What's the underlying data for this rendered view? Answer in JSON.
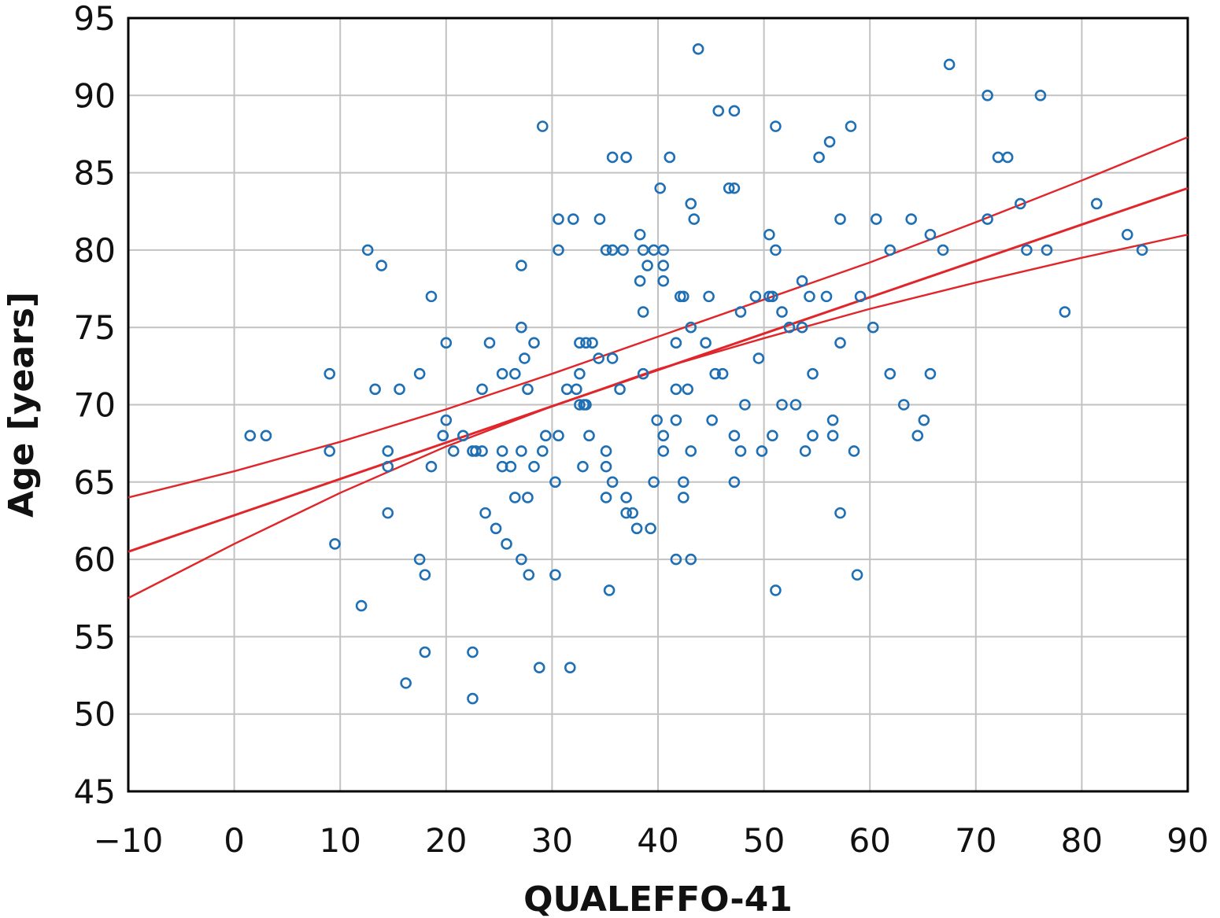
{
  "chart_data": {
    "type": "scatter",
    "title": "",
    "xlabel": "QUALEFFO-41",
    "ylabel": "Age [years]",
    "xlim": [
      -10,
      90
    ],
    "ylim": [
      45,
      95
    ],
    "x_ticks": [
      -10,
      0,
      10,
      20,
      30,
      40,
      50,
      60,
      70,
      80,
      90
    ],
    "y_ticks": [
      45,
      50,
      55,
      60,
      65,
      70,
      75,
      80,
      85,
      90,
      95
    ],
    "x_tick_labels": [
      "−10",
      "0",
      "10",
      "20",
      "30",
      "40",
      "50",
      "60",
      "70",
      "80",
      "90"
    ],
    "y_tick_labels": [
      "45",
      "50",
      "55",
      "60",
      "65",
      "70",
      "75",
      "80",
      "85",
      "90",
      "95"
    ],
    "grid": true,
    "point_color": "#1f6fb5",
    "line_color": "#e0262a",
    "points": [
      [
        1.5,
        68
      ],
      [
        3,
        68
      ],
      [
        9,
        72
      ],
      [
        9,
        67
      ],
      [
        9.5,
        61
      ],
      [
        12,
        57
      ],
      [
        12.6,
        80
      ],
      [
        13.3,
        71
      ],
      [
        13.9,
        79
      ],
      [
        14.5,
        67
      ],
      [
        14.5,
        66
      ],
      [
        14.5,
        63
      ],
      [
        15.6,
        71
      ],
      [
        16.2,
        52
      ],
      [
        17.5,
        72
      ],
      [
        17.5,
        60
      ],
      [
        18,
        59
      ],
      [
        18,
        54
      ],
      [
        18.6,
        77
      ],
      [
        18.6,
        66
      ],
      [
        20,
        74
      ],
      [
        20,
        69
      ],
      [
        19.7,
        68
      ],
      [
        20.7,
        67
      ],
      [
        21.6,
        68
      ],
      [
        22.5,
        67
      ],
      [
        22.5,
        54
      ],
      [
        22.5,
        51
      ],
      [
        22.8,
        67
      ],
      [
        23.4,
        71
      ],
      [
        23.4,
        67
      ],
      [
        23.7,
        63
      ],
      [
        24.1,
        74
      ],
      [
        24.7,
        62
      ],
      [
        25.3,
        72
      ],
      [
        25.3,
        67
      ],
      [
        25.3,
        66
      ],
      [
        25.7,
        61
      ],
      [
        26.1,
        66
      ],
      [
        26.5,
        72
      ],
      [
        26.5,
        64
      ],
      [
        27.1,
        79
      ],
      [
        27.1,
        75
      ],
      [
        27.1,
        67
      ],
      [
        27.1,
        60
      ],
      [
        27.4,
        73
      ],
      [
        27.7,
        71
      ],
      [
        27.7,
        64
      ],
      [
        27.8,
        59
      ],
      [
        28.3,
        74
      ],
      [
        28.3,
        66
      ],
      [
        28.8,
        53
      ],
      [
        29.1,
        88
      ],
      [
        29.1,
        67
      ],
      [
        29.4,
        68
      ],
      [
        30.3,
        65
      ],
      [
        30.3,
        59
      ],
      [
        30.6,
        82
      ],
      [
        30.6,
        80
      ],
      [
        30.6,
        68
      ],
      [
        31.4,
        71
      ],
      [
        31.7,
        53
      ],
      [
        32,
        82
      ],
      [
        32.3,
        71
      ],
      [
        32.6,
        74
      ],
      [
        32.6,
        72
      ],
      [
        32.6,
        70
      ],
      [
        32.9,
        66
      ],
      [
        33,
        70
      ],
      [
        33.2,
        74
      ],
      [
        33.2,
        70
      ],
      [
        33.5,
        68
      ],
      [
        33.8,
        74
      ],
      [
        34.4,
        73
      ],
      [
        34.5,
        82
      ],
      [
        35.1,
        80
      ],
      [
        35.1,
        67
      ],
      [
        35.1,
        66
      ],
      [
        35.1,
        64
      ],
      [
        35.4,
        58
      ],
      [
        35.7,
        86
      ],
      [
        35.7,
        80
      ],
      [
        35.7,
        73
      ],
      [
        35.7,
        65
      ],
      [
        36.4,
        71
      ],
      [
        36.7,
        80
      ],
      [
        37,
        86
      ],
      [
        37,
        64
      ],
      [
        37,
        63
      ],
      [
        37.6,
        63
      ],
      [
        38,
        62
      ],
      [
        38.3,
        81
      ],
      [
        38.3,
        78
      ],
      [
        38.6,
        80
      ],
      [
        38.6,
        76
      ],
      [
        38.6,
        72
      ],
      [
        39,
        79
      ],
      [
        39.3,
        62
      ],
      [
        39.6,
        80
      ],
      [
        39.6,
        65
      ],
      [
        39.9,
        69
      ],
      [
        40.2,
        84
      ],
      [
        40.5,
        80
      ],
      [
        40.5,
        79
      ],
      [
        40.5,
        78
      ],
      [
        40.5,
        68
      ],
      [
        40.5,
        67
      ],
      [
        41.1,
        86
      ],
      [
        41.7,
        74
      ],
      [
        41.7,
        71
      ],
      [
        41.7,
        69
      ],
      [
        41.7,
        60
      ],
      [
        42.1,
        77
      ],
      [
        42.4,
        77
      ],
      [
        42.4,
        65
      ],
      [
        42.4,
        64
      ],
      [
        42.8,
        71
      ],
      [
        43.1,
        83
      ],
      [
        43.1,
        75
      ],
      [
        43.1,
        67
      ],
      [
        43.1,
        60
      ],
      [
        43.4,
        82
      ],
      [
        43.8,
        93
      ],
      [
        44.5,
        74
      ],
      [
        44.8,
        77
      ],
      [
        45.1,
        69
      ],
      [
        45.4,
        72
      ],
      [
        45.7,
        89
      ],
      [
        46.1,
        72
      ],
      [
        46.7,
        84
      ],
      [
        47.2,
        89
      ],
      [
        47.2,
        84
      ],
      [
        47.2,
        68
      ],
      [
        47.2,
        65
      ],
      [
        47.8,
        76
      ],
      [
        47.8,
        67
      ],
      [
        48.2,
        70
      ],
      [
        49.2,
        77
      ],
      [
        49.5,
        73
      ],
      [
        49.8,
        67
      ],
      [
        50.5,
        81
      ],
      [
        50.5,
        77
      ],
      [
        50.8,
        77
      ],
      [
        50.8,
        68
      ],
      [
        51.1,
        88
      ],
      [
        51.1,
        80
      ],
      [
        51.1,
        58
      ],
      [
        51.7,
        76
      ],
      [
        51.7,
        70
      ],
      [
        52.4,
        75
      ],
      [
        53,
        70
      ],
      [
        53.6,
        78
      ],
      [
        53.6,
        75
      ],
      [
        53.9,
        67
      ],
      [
        54.3,
        77
      ],
      [
        54.6,
        72
      ],
      [
        54.6,
        68
      ],
      [
        55.2,
        86
      ],
      [
        55.9,
        77
      ],
      [
        56.2,
        87
      ],
      [
        56.5,
        69
      ],
      [
        56.5,
        68
      ],
      [
        57.2,
        82
      ],
      [
        57.2,
        74
      ],
      [
        57.2,
        63
      ],
      [
        58.2,
        88
      ],
      [
        58.5,
        67
      ],
      [
        58.8,
        59
      ],
      [
        59.1,
        77
      ],
      [
        60.3,
        75
      ],
      [
        60.6,
        82
      ],
      [
        61.9,
        80
      ],
      [
        61.9,
        72
      ],
      [
        63.2,
        70
      ],
      [
        63.9,
        82
      ],
      [
        64.5,
        68
      ],
      [
        65.1,
        69
      ],
      [
        65.7,
        81
      ],
      [
        65.7,
        72
      ],
      [
        66.9,
        80
      ],
      [
        67.5,
        92
      ],
      [
        71.1,
        90
      ],
      [
        71.1,
        82
      ],
      [
        72.1,
        86
      ],
      [
        73,
        86
      ],
      [
        74.2,
        83
      ],
      [
        74.8,
        80
      ],
      [
        76.1,
        90
      ],
      [
        76.7,
        80
      ],
      [
        78.4,
        76
      ],
      [
        81.4,
        83
      ],
      [
        84.3,
        81
      ],
      [
        85.7,
        80
      ]
    ],
    "lines": [
      {
        "role": "fit",
        "x": [
          -10,
          90
        ],
        "y": [
          60.5,
          84
        ]
      },
      {
        "role": "upper",
        "x": [
          -10,
          0,
          10,
          20,
          30,
          40,
          50,
          60,
          70,
          80,
          90
        ],
        "y": [
          64,
          65.7,
          67.6,
          69.7,
          72,
          74.4,
          76.8,
          79.2,
          81.8,
          84.5,
          87.3
        ]
      },
      {
        "role": "lower",
        "x": [
          -10,
          0,
          10,
          20,
          30,
          40,
          50,
          60,
          70,
          80,
          90
        ],
        "y": [
          57.5,
          61,
          64.3,
          67.3,
          69.9,
          72.3,
          74.3,
          76.2,
          77.9,
          79.5,
          81
        ]
      }
    ]
  }
}
